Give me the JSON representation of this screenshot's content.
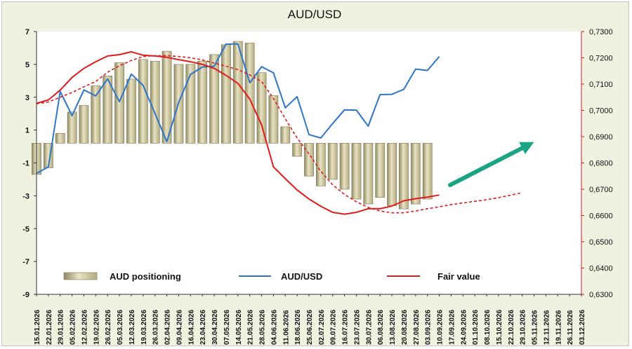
{
  "chart_data": {
    "type": "bar+line",
    "title": "AUD/USD",
    "x_dates": [
      "15.01.2026",
      "22.01.2026",
      "29.01.2026",
      "05.02.2026",
      "12.02.2026",
      "19.02.2026",
      "26.02.2026",
      "05.03.2026",
      "12.03.2026",
      "19.03.2026",
      "26.03.2026",
      "02.04.2026",
      "09.04.2026",
      "16.04.2026",
      "23.04.2026",
      "30.04.2026",
      "07.05.2026",
      "14.05.2026",
      "21.05.2026",
      "28.05.2026",
      "04.06.2026",
      "11.06.2026",
      "18.06.2026",
      "25.06.2026",
      "02.07.2026",
      "09.07.2026",
      "16.07.2026",
      "23.07.2026",
      "30.07.2026",
      "06.08.2026",
      "13.08.2026",
      "20.08.2026",
      "27.08.2026",
      "03.09.2026",
      "10.09.2026",
      "17.09.2026",
      "24.09.2026",
      "01.10.2026",
      "08.10.2026",
      "15.10.2026",
      "22.10.2026",
      "29.10.2026",
      "05.11.2026",
      "12.11.2026",
      "19.11.2026",
      "26.11.2026",
      "03.12.2026"
    ],
    "left_axis": {
      "min": -9,
      "max": 7,
      "ticks": [
        7,
        5,
        3,
        1,
        -1,
        -3,
        -5,
        -7,
        -9
      ]
    },
    "right_axis": {
      "min": 0.63,
      "max": 0.73,
      "ticks": [
        "0,7300",
        "0,7200",
        "0,7100",
        "0,7000",
        "0,6900",
        "0,6800",
        "0,6700",
        "0,6600",
        "0,6500",
        "0,6400",
        "0,6300"
      ]
    },
    "series": [
      {
        "name": "AUD positioning",
        "kind": "bar",
        "axis": "left",
        "color": "#c9c29a",
        "values": [
          -1.7,
          -1.3,
          0.8,
          2.1,
          2.5,
          3.7,
          4.3,
          5.1,
          4.1,
          5.3,
          5.2,
          5.8,
          5.0,
          5.0,
          5.2,
          5.6,
          6.2,
          6.4,
          6.3,
          4.5,
          3.1,
          1.2,
          -0.6,
          -1.8,
          -2.4,
          -2.0,
          -2.6,
          -3.2,
          -3.5,
          -3.1,
          -3.6,
          -3.8,
          -3.5,
          -3.2
        ]
      },
      {
        "name": "AUD/USD",
        "kind": "line",
        "axis": "right",
        "color": "#2e75c9",
        "values": [
          0.676,
          0.6785,
          0.7072,
          0.698,
          0.7078,
          0.7055,
          0.712,
          0.7033,
          0.7138,
          0.7095,
          0.6988,
          0.6881,
          0.703,
          0.7137,
          0.7165,
          0.7168,
          0.7252,
          0.7253,
          0.7105,
          0.7166,
          0.7143,
          0.701,
          0.7052,
          0.6908,
          0.6895,
          0.695,
          0.7002,
          0.7001,
          0.694,
          0.706,
          0.7061,
          0.708,
          0.7157,
          0.7152,
          0.7205
        ]
      },
      {
        "name": "Fair value",
        "kind": "line",
        "axis": "right",
        "color": "#e01b1b",
        "values": [
          0.7027,
          0.704,
          0.7077,
          0.7125,
          0.716,
          0.7185,
          0.7207,
          0.7212,
          0.7223,
          0.721,
          0.7207,
          0.7202,
          0.7193,
          0.7185,
          0.7175,
          0.716,
          0.7133,
          0.7103,
          0.7043,
          0.6945,
          0.6785,
          0.674,
          0.6697,
          0.6663,
          0.6635,
          0.6612,
          0.6605,
          0.6612,
          0.6626,
          0.6626,
          0.6636,
          0.6656,
          0.6664,
          0.667,
          0.6678
        ]
      },
      {
        "name": "Fair value (forecast)",
        "kind": "dashed-line",
        "axis": "right",
        "color": "#e01b1b",
        "values": [
          0.7025,
          0.7032,
          0.705,
          0.7068,
          0.709,
          0.711,
          0.7145,
          0.717,
          0.719,
          0.7205,
          0.7208,
          0.7208,
          0.7205,
          0.72,
          0.7192,
          0.718,
          0.7168,
          0.7155,
          0.7135,
          0.711,
          0.7045,
          0.6968,
          0.6895,
          0.6835,
          0.6768,
          0.6717,
          0.668,
          0.6652,
          0.6631,
          0.6617,
          0.661,
          0.661,
          0.6617,
          0.6626,
          0.6633,
          0.6641,
          0.6648,
          0.6654,
          0.666,
          0.6668,
          0.6677,
          0.6687
        ]
      }
    ],
    "arrow_color": "#1aa384",
    "grid": false,
    "legend": {
      "position": "bottom-inside",
      "items": [
        {
          "label": "AUD positioning",
          "swatch": "bar"
        },
        {
          "label": "AUD/USD",
          "swatch": "blue-line"
        },
        {
          "label": "Fair value",
          "swatch": "red-line"
        }
      ]
    }
  }
}
